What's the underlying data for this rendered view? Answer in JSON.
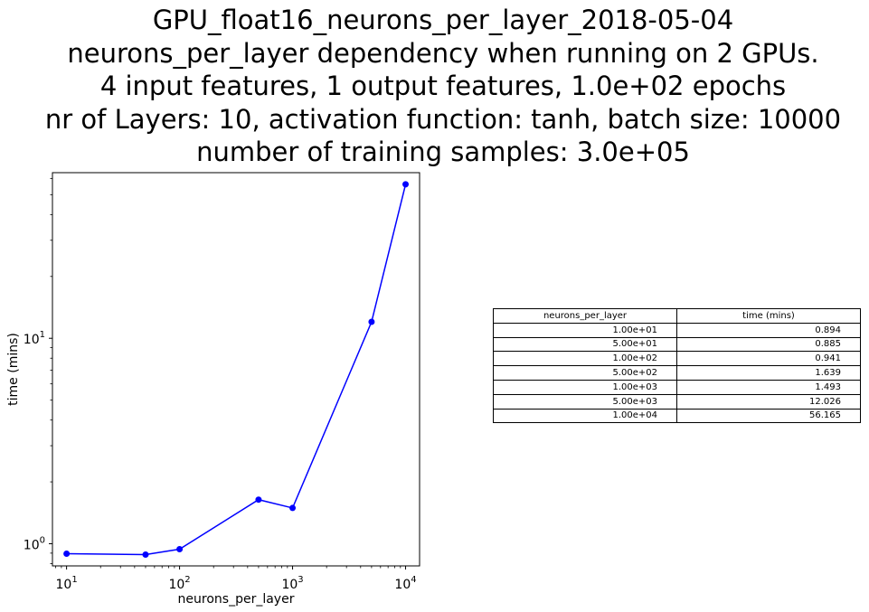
{
  "title_lines": [
    "GPU_float16_neurons_per_layer_2018-05-04",
    "neurons_per_layer dependency when running on 2 GPUs.",
    "4 input features, 1 output features, 1.0e+02 epochs",
    "nr of Layers: 10, activation function: tanh, batch size: 10000",
    "number of training samples: 3.0e+05"
  ],
  "chart_data": {
    "type": "line",
    "xlabel": "neurons_per_layer",
    "ylabel": "time (mins)",
    "xscale": "log",
    "yscale": "log",
    "xlim": [
      7.5,
      13300
    ],
    "ylim": [
      0.78,
      64
    ],
    "x_ticks": [
      10,
      100,
      1000,
      10000
    ],
    "x_tick_labels": [
      [
        "10",
        "1"
      ],
      [
        "10",
        "2"
      ],
      [
        "10",
        "3"
      ],
      [
        "10",
        "4"
      ]
    ],
    "y_ticks": [
      1,
      10
    ],
    "y_tick_labels": [
      [
        "10",
        "0"
      ],
      [
        "10",
        "1"
      ]
    ],
    "grid": false,
    "series": [
      {
        "color": "#0000ff",
        "marker": "circle",
        "x": [
          10,
          50,
          100,
          500,
          1000,
          5000,
          10000
        ],
        "y": [
          0.894,
          0.885,
          0.941,
          1.639,
          1.493,
          12.026,
          56.165
        ]
      }
    ]
  },
  "table": {
    "headers": [
      "neurons_per_layer",
      "time (mins)"
    ],
    "rows": [
      [
        "1.00e+01",
        "0.894"
      ],
      [
        "5.00e+01",
        "0.885"
      ],
      [
        "1.00e+02",
        "0.941"
      ],
      [
        "5.00e+02",
        "1.639"
      ],
      [
        "1.00e+03",
        "1.493"
      ],
      [
        "5.00e+03",
        "12.026"
      ],
      [
        "1.00e+04",
        "56.165"
      ]
    ]
  }
}
